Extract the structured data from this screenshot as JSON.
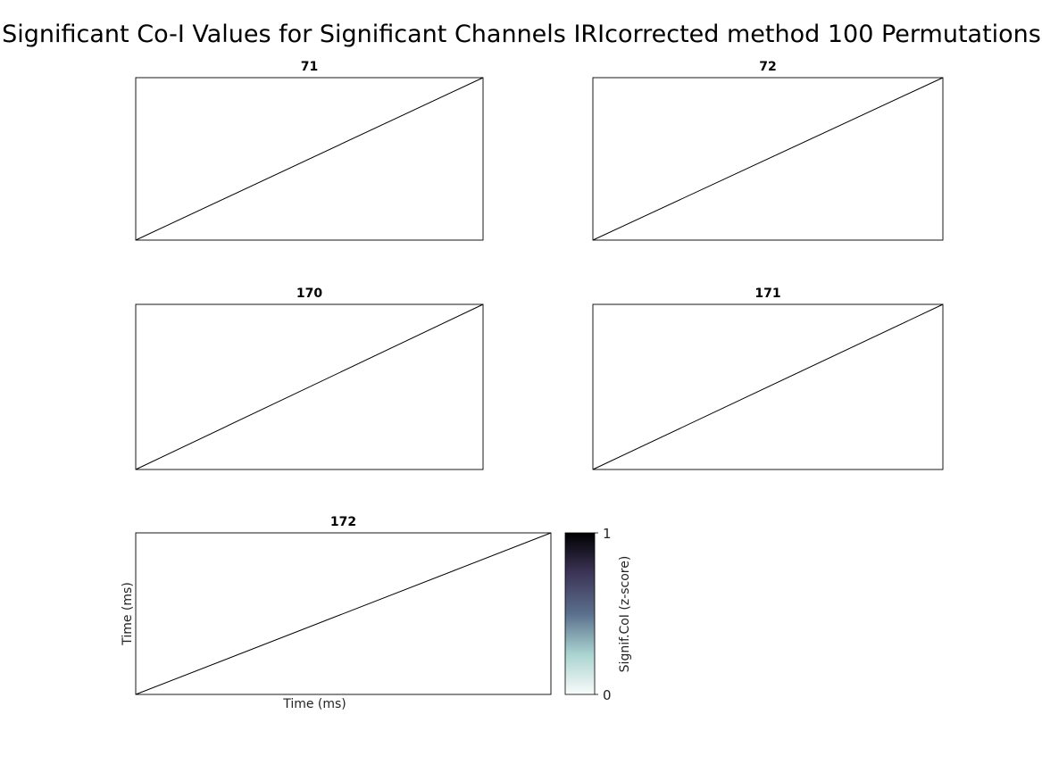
{
  "figure": {
    "title": "Significant Co-I Values for Significant Channels IRIcorrected method 100 Permutations"
  },
  "chart_data": [
    {
      "type": "heatmap",
      "title": "71",
      "xlabel": "",
      "ylabel": "",
      "series": [
        {
          "x": [
            0,
            1
          ],
          "y": [
            0,
            1
          ]
        }
      ]
    },
    {
      "type": "heatmap",
      "title": "72",
      "xlabel": "",
      "ylabel": "",
      "series": [
        {
          "x": [
            0,
            1
          ],
          "y": [
            0,
            1
          ]
        }
      ]
    },
    {
      "type": "heatmap",
      "title": "170",
      "xlabel": "",
      "ylabel": "",
      "series": [
        {
          "x": [
            0,
            1
          ],
          "y": [
            0,
            1
          ]
        }
      ]
    },
    {
      "type": "heatmap",
      "title": "171",
      "xlabel": "",
      "ylabel": "",
      "series": [
        {
          "x": [
            0,
            1
          ],
          "y": [
            0,
            1
          ]
        }
      ]
    },
    {
      "type": "heatmap",
      "title": "172",
      "xlabel": "Time (ms)",
      "ylabel": "Time (ms)",
      "series": [
        {
          "x": [
            0,
            1
          ],
          "y": [
            0,
            1
          ]
        }
      ]
    }
  ],
  "colorbar": {
    "label": "Signif.CoI (z-score)",
    "min_label": "0",
    "max_label": "1",
    "colors": [
      "#f8fbfb",
      "#a9d3d0",
      "#5a6f8c",
      "#3d3557",
      "#000000"
    ]
  }
}
